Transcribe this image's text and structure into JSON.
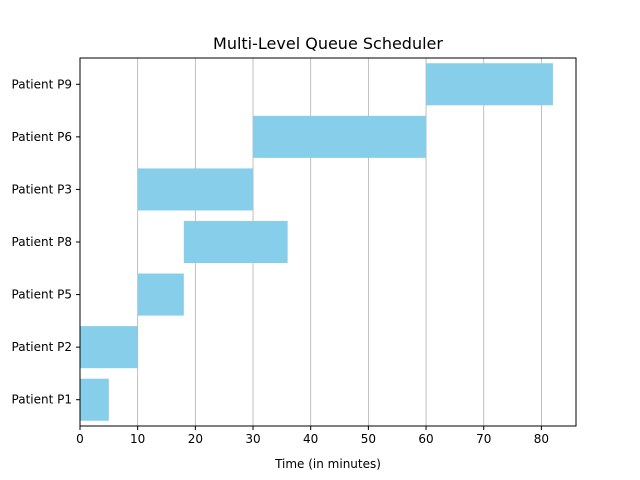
{
  "chart_data": {
    "type": "gantt",
    "title": "Multi-Level Queue Scheduler",
    "xlabel": "Time (in minutes)",
    "ylabel": "",
    "xlim": [
      0,
      86
    ],
    "xticks": [
      0,
      10,
      20,
      30,
      40,
      50,
      60,
      70,
      80
    ],
    "grid": "x",
    "bar_color": "#87ceeb",
    "tasks": [
      {
        "label": "Patient P1",
        "start": 0,
        "end": 5
      },
      {
        "label": "Patient P2",
        "start": 0,
        "end": 10
      },
      {
        "label": "Patient P5",
        "start": 10,
        "end": 18
      },
      {
        "label": "Patient P8",
        "start": 18,
        "end": 36
      },
      {
        "label": "Patient P3",
        "start": 10,
        "end": 30
      },
      {
        "label": "Patient P6",
        "start": 30,
        "end": 60
      },
      {
        "label": "Patient P9",
        "start": 60,
        "end": 82
      }
    ]
  }
}
